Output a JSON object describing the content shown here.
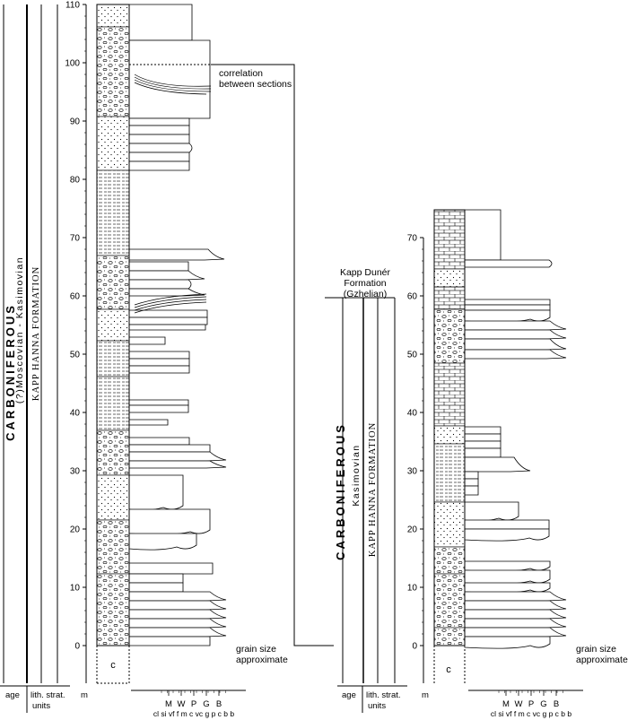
{
  "left_section": {
    "axis_unit": "m",
    "ticks": [
      "0",
      "10",
      "20",
      "30",
      "40",
      "50",
      "60",
      "70",
      "80",
      "90",
      "100",
      "110"
    ],
    "column_label": "c",
    "age_label": "CARBONIFEROUS",
    "stage_label": "(?)Moscovian - Kasimovian",
    "formation_label": "KAPP HANNA FORMATION"
  },
  "right_section": {
    "axis_unit": "m",
    "ticks": [
      "0",
      "10",
      "20",
      "30",
      "40",
      "50",
      "60",
      "70"
    ],
    "column_label": "c",
    "age_label": "CARBONIFEROUS",
    "stage_label": "Kasimovian",
    "formation_label": "KAPP HANNA FORMATION",
    "overlying_unit": [
      "Kapp Dunér",
      "Formation",
      "(Gzhelian)"
    ]
  },
  "correlation_label": [
    "correlation",
    "between sections"
  ],
  "grain_size_note": [
    "grain size",
    "approximate"
  ],
  "footer_labels": {
    "age": "age",
    "lith_strat": [
      "lith. strat.",
      "units"
    ]
  },
  "grain_scale_top": [
    "M",
    "W",
    "P",
    "G",
    "B"
  ],
  "grain_scale_bottom": "cl si vf f m c vc g p c b b"
}
